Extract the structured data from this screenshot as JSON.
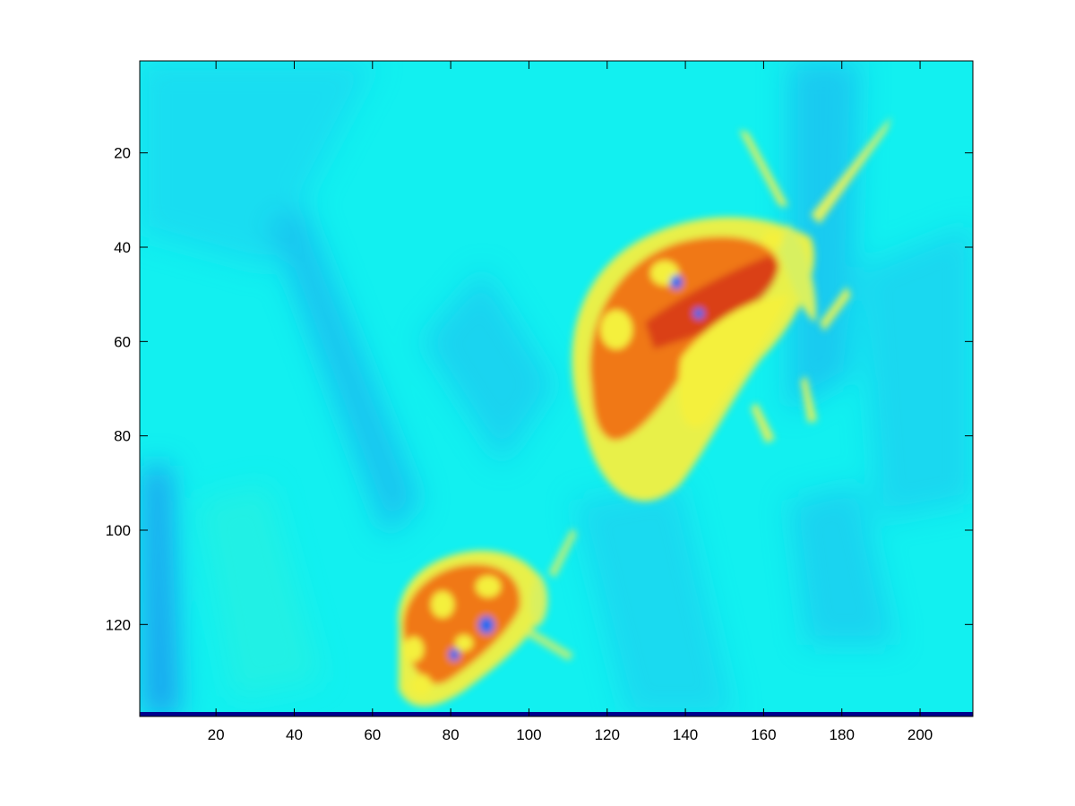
{
  "chart_data": {
    "type": "heatmap",
    "colormap": "jet",
    "title": "",
    "xlabel": "",
    "ylabel": "",
    "xlim": [
      0.5,
      213.5
    ],
    "ylim": [
      0.5,
      139.5
    ],
    "y_direction": "reversed",
    "grid": false,
    "x_ticks": [
      20,
      40,
      60,
      80,
      100,
      120,
      140,
      160,
      180,
      200
    ],
    "y_ticks": [
      20,
      40,
      60,
      80,
      100,
      120
    ],
    "x_tick_labels": [
      "20",
      "40",
      "60",
      "80",
      "100",
      "120",
      "140",
      "160",
      "180",
      "200"
    ],
    "y_tick_labels": [
      "20",
      "40",
      "60",
      "80",
      "100",
      "120"
    ],
    "image_description_regions": [
      {
        "subject": "large ladybug",
        "center": [
          150,
          62
        ],
        "value_level": "high"
      },
      {
        "subject": "small ladybug",
        "center": [
          82,
          122
        ],
        "value_level": "high"
      },
      {
        "subject": "background foliage",
        "value_level": "low-mid"
      }
    ],
    "colors": {
      "background": "#12f0f0",
      "background_dark": "#1ea8f0",
      "body_mid": "#f4f03c",
      "body_high": "#f07818",
      "body_max": "#c81410",
      "spot_low": "#1a6cf0",
      "bottom_band": "#00008c"
    }
  }
}
